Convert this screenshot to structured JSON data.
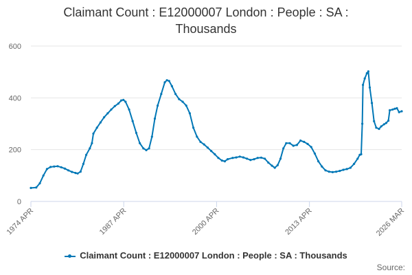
{
  "chart_data": {
    "type": "line",
    "title_line1": "Claimant Count : E12000007 London : People : SA :",
    "title_line2": "Thousands",
    "x_tick_labels": [
      "1974 APR",
      "1987 APR",
      "2000 APR",
      "2013 APR",
      "2026 MAR"
    ],
    "x_ticks_decimal_year": [
      1974.25,
      1987.25,
      2000.25,
      2013.25,
      2026.17
    ],
    "xlim": [
      1974.25,
      2026.17
    ],
    "ylim": [
      0,
      600
    ],
    "y_ticks": [
      0,
      200,
      400,
      600
    ],
    "grid": "horizontal",
    "legend_position": "bottom",
    "series": [
      {
        "name": "Claimant Count : E12000007 London : People : SA : Thousands",
        "color": "#0077b6",
        "points": [
          [
            1974.25,
            52
          ],
          [
            1975.0,
            54
          ],
          [
            1975.5,
            70
          ],
          [
            1976.0,
            100
          ],
          [
            1976.5,
            125
          ],
          [
            1977.0,
            133
          ],
          [
            1977.5,
            135
          ],
          [
            1978.0,
            136
          ],
          [
            1978.5,
            132
          ],
          [
            1979.0,
            127
          ],
          [
            1979.5,
            120
          ],
          [
            1980.0,
            114
          ],
          [
            1980.5,
            110
          ],
          [
            1980.8,
            108
          ],
          [
            1981.2,
            115
          ],
          [
            1981.6,
            145
          ],
          [
            1982.0,
            180
          ],
          [
            1982.5,
            205
          ],
          [
            1982.8,
            225
          ],
          [
            1983.0,
            262
          ],
          [
            1983.5,
            285
          ],
          [
            1984.0,
            305
          ],
          [
            1984.5,
            325
          ],
          [
            1985.0,
            340
          ],
          [
            1985.5,
            355
          ],
          [
            1986.0,
            368
          ],
          [
            1986.5,
            378
          ],
          [
            1986.9,
            390
          ],
          [
            1987.2,
            392
          ],
          [
            1987.5,
            385
          ],
          [
            1988.0,
            355
          ],
          [
            1988.5,
            310
          ],
          [
            1989.0,
            265
          ],
          [
            1989.5,
            225
          ],
          [
            1990.0,
            205
          ],
          [
            1990.4,
            198
          ],
          [
            1990.8,
            205
          ],
          [
            1991.2,
            250
          ],
          [
            1991.6,
            320
          ],
          [
            1992.0,
            370
          ],
          [
            1992.5,
            415
          ],
          [
            1993.0,
            460
          ],
          [
            1993.3,
            468
          ],
          [
            1993.6,
            465
          ],
          [
            1994.0,
            445
          ],
          [
            1994.5,
            415
          ],
          [
            1995.0,
            395
          ],
          [
            1995.5,
            385
          ],
          [
            1996.0,
            370
          ],
          [
            1996.5,
            340
          ],
          [
            1997.0,
            285
          ],
          [
            1997.5,
            250
          ],
          [
            1998.0,
            230
          ],
          [
            1998.5,
            220
          ],
          [
            1999.0,
            208
          ],
          [
            1999.5,
            195
          ],
          [
            2000.0,
            182
          ],
          [
            2000.5,
            168
          ],
          [
            2001.0,
            158
          ],
          [
            2001.4,
            155
          ],
          [
            2001.8,
            163
          ],
          [
            2002.5,
            168
          ],
          [
            2003.0,
            170
          ],
          [
            2003.5,
            173
          ],
          [
            2004.0,
            170
          ],
          [
            2004.5,
            165
          ],
          [
            2005.0,
            160
          ],
          [
            2005.5,
            163
          ],
          [
            2006.0,
            168
          ],
          [
            2006.5,
            169
          ],
          [
            2007.0,
            165
          ],
          [
            2007.5,
            150
          ],
          [
            2008.0,
            138
          ],
          [
            2008.4,
            130
          ],
          [
            2008.8,
            140
          ],
          [
            2009.2,
            165
          ],
          [
            2009.6,
            205
          ],
          [
            2010.0,
            225
          ],
          [
            2010.5,
            225
          ],
          [
            2011.0,
            215
          ],
          [
            2011.5,
            218
          ],
          [
            2012.0,
            235
          ],
          [
            2012.5,
            230
          ],
          [
            2013.0,
            222
          ],
          [
            2013.5,
            210
          ],
          [
            2014.0,
            185
          ],
          [
            2014.5,
            155
          ],
          [
            2015.0,
            135
          ],
          [
            2015.5,
            120
          ],
          [
            2016.0,
            115
          ],
          [
            2016.5,
            113
          ],
          [
            2017.0,
            115
          ],
          [
            2017.5,
            118
          ],
          [
            2018.0,
            122
          ],
          [
            2018.5,
            125
          ],
          [
            2019.0,
            130
          ],
          [
            2019.5,
            145
          ],
          [
            2020.0,
            165
          ],
          [
            2020.3,
            180
          ],
          [
            2020.5,
            182
          ],
          [
            2020.65,
            300
          ],
          [
            2020.75,
            450
          ],
          [
            2021.0,
            475
          ],
          [
            2021.3,
            495
          ],
          [
            2021.5,
            502
          ],
          [
            2021.7,
            440
          ],
          [
            2022.0,
            380
          ],
          [
            2022.3,
            310
          ],
          [
            2022.6,
            285
          ],
          [
            2023.0,
            280
          ],
          [
            2023.3,
            290
          ],
          [
            2023.7,
            298
          ],
          [
            2024.0,
            303
          ],
          [
            2024.3,
            312
          ],
          [
            2024.5,
            352
          ],
          [
            2024.9,
            355
          ],
          [
            2025.2,
            358
          ],
          [
            2025.5,
            360
          ],
          [
            2025.8,
            345
          ],
          [
            2026.17,
            348
          ]
        ]
      }
    ]
  },
  "legend": {
    "label": "Claimant Count : E12000007 London : People : SA : Thousands"
  },
  "source_label": "Source:"
}
